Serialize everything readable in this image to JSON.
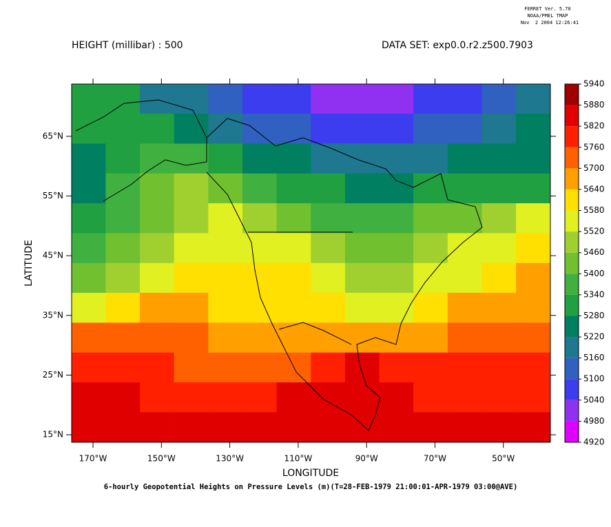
{
  "chart_data": {
    "type": "heatmap",
    "stamp": [
      "FERRET Ver. 5.70",
      "NOAA/PMEL TMAP",
      "Nov  2 2004 12:26:41"
    ],
    "title": "HEIGHT (millibar) : 500",
    "dataset": "DATA SET: exp0.0.r2.z500.7903",
    "xlabel": "LONGITUDE",
    "ylabel": "LATITUDE",
    "caption": "6-hourly Geopotential Heights on Pressure Levels (m)(T=28-FEB-1979 21:00:01-APR-1979 03:00@AVE)",
    "xlim": [
      -176.25,
      -36.25
    ],
    "ylim": [
      13.75,
      73.75
    ],
    "xticks": [
      {
        "value": -170,
        "label": "170°W"
      },
      {
        "value": -150,
        "label": "150°W"
      },
      {
        "value": -130,
        "label": "130°W"
      },
      {
        "value": -110,
        "label": "110°W"
      },
      {
        "value": -90,
        "label": "90°W"
      },
      {
        "value": -70,
        "label": "70°W"
      },
      {
        "value": -50,
        "label": "50°W"
      }
    ],
    "yticks": [
      {
        "value": 15,
        "label": "15°N"
      },
      {
        "value": 25,
        "label": "25°N"
      },
      {
        "value": 35,
        "label": "35°N"
      },
      {
        "value": 45,
        "label": "45°N"
      },
      {
        "value": 55,
        "label": "55°N"
      },
      {
        "value": 65,
        "label": "65°N"
      }
    ],
    "x": [
      -171.25,
      -161.25,
      -151.25,
      -141.25,
      -131.25,
      -121.25,
      -111.25,
      -101.25,
      -91.25,
      -81.25,
      -71.25,
      -61.25,
      -51.25,
      -41.25
    ],
    "y": [
      71.25,
      66.25,
      61.25,
      56.25,
      51.25,
      46.25,
      41.25,
      36.25,
      31.25,
      26.25,
      21.25,
      16.25
    ],
    "values": [
      [
        5310,
        5310,
        5190,
        5190,
        5130,
        5070,
        5070,
        5010,
        4990,
        5010,
        5070,
        5070,
        5130,
        5190
      ],
      [
        5310,
        5310,
        5310,
        5250,
        5190,
        5130,
        5130,
        5070,
        5070,
        5070,
        5130,
        5130,
        5190,
        5250
      ],
      [
        5250,
        5310,
        5370,
        5370,
        5310,
        5250,
        5250,
        5190,
        5190,
        5190,
        5190,
        5250,
        5250,
        5250
      ],
      [
        5250,
        5370,
        5430,
        5490,
        5430,
        5370,
        5310,
        5310,
        5250,
        5250,
        5310,
        5310,
        5310,
        5310
      ],
      [
        5310,
        5370,
        5430,
        5490,
        5550,
        5490,
        5430,
        5370,
        5370,
        5370,
        5430,
        5430,
        5490,
        5550
      ],
      [
        5370,
        5430,
        5490,
        5550,
        5550,
        5550,
        5550,
        5490,
        5430,
        5430,
        5490,
        5550,
        5550,
        5610
      ],
      [
        5430,
        5490,
        5550,
        5610,
        5610,
        5610,
        5610,
        5550,
        5490,
        5490,
        5550,
        5550,
        5610,
        5670
      ],
      [
        5550,
        5610,
        5670,
        5670,
        5610,
        5610,
        5610,
        5610,
        5550,
        5550,
        5610,
        5670,
        5670,
        5670
      ],
      [
        5730,
        5730,
        5730,
        5730,
        5670,
        5670,
        5670,
        5670,
        5670,
        5670,
        5670,
        5730,
        5730,
        5730
      ],
      [
        5790,
        5790,
        5790,
        5730,
        5730,
        5730,
        5730,
        5790,
        5850,
        5790,
        5790,
        5790,
        5790,
        5790
      ],
      [
        5850,
        5850,
        5790,
        5790,
        5790,
        5790,
        5850,
        5850,
        5850,
        5850,
        5790,
        5790,
        5790,
        5790
      ],
      [
        5850,
        5850,
        5850,
        5850,
        5850,
        5850,
        5850,
        5850,
        5850,
        5850,
        5850,
        5850,
        5850,
        5850
      ]
    ],
    "levels": [
      4920,
      4980,
      5040,
      5100,
      5160,
      5220,
      5280,
      5340,
      5400,
      5460,
      5520,
      5580,
      5640,
      5700,
      5760,
      5820,
      5880,
      5940
    ],
    "colors": [
      "#e000ff",
      "#9030f0",
      "#3d3df0",
      "#3060c0",
      "#1e7890",
      "#008060",
      "#20a040",
      "#40b040",
      "#70c030",
      "#a0d030",
      "#e0f020",
      "#ffe000",
      "#ffa000",
      "#ff6000",
      "#ff2000",
      "#e00000",
      "#a00000"
    ]
  }
}
